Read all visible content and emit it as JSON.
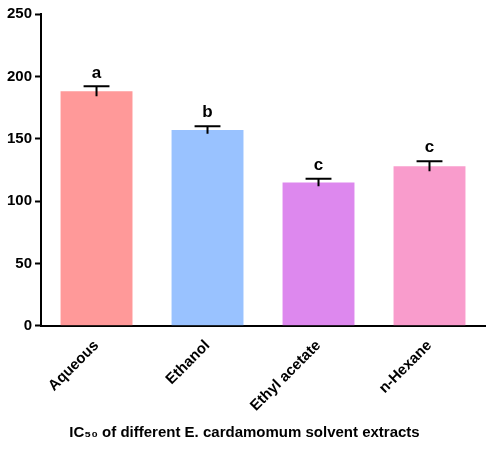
{
  "chart_data": {
    "type": "bar",
    "title": "IC₅₀ of different E. cardamomum solvent extracts",
    "categories": [
      "Aqueous",
      "Ethanol",
      "Ethyl acetate",
      "n-Hexane"
    ],
    "values": [
      188,
      157,
      115,
      128
    ],
    "errors": [
      4,
      3,
      3,
      4
    ],
    "letters": [
      "a",
      "b",
      "c",
      "c"
    ],
    "colors": [
      "#ff9999",
      "#99c2ff",
      "#dd88ee",
      "#f99ccc"
    ],
    "ylim": [
      0,
      250
    ],
    "yticks": [
      0,
      50,
      100,
      150,
      200,
      250
    ],
    "grid": false
  }
}
